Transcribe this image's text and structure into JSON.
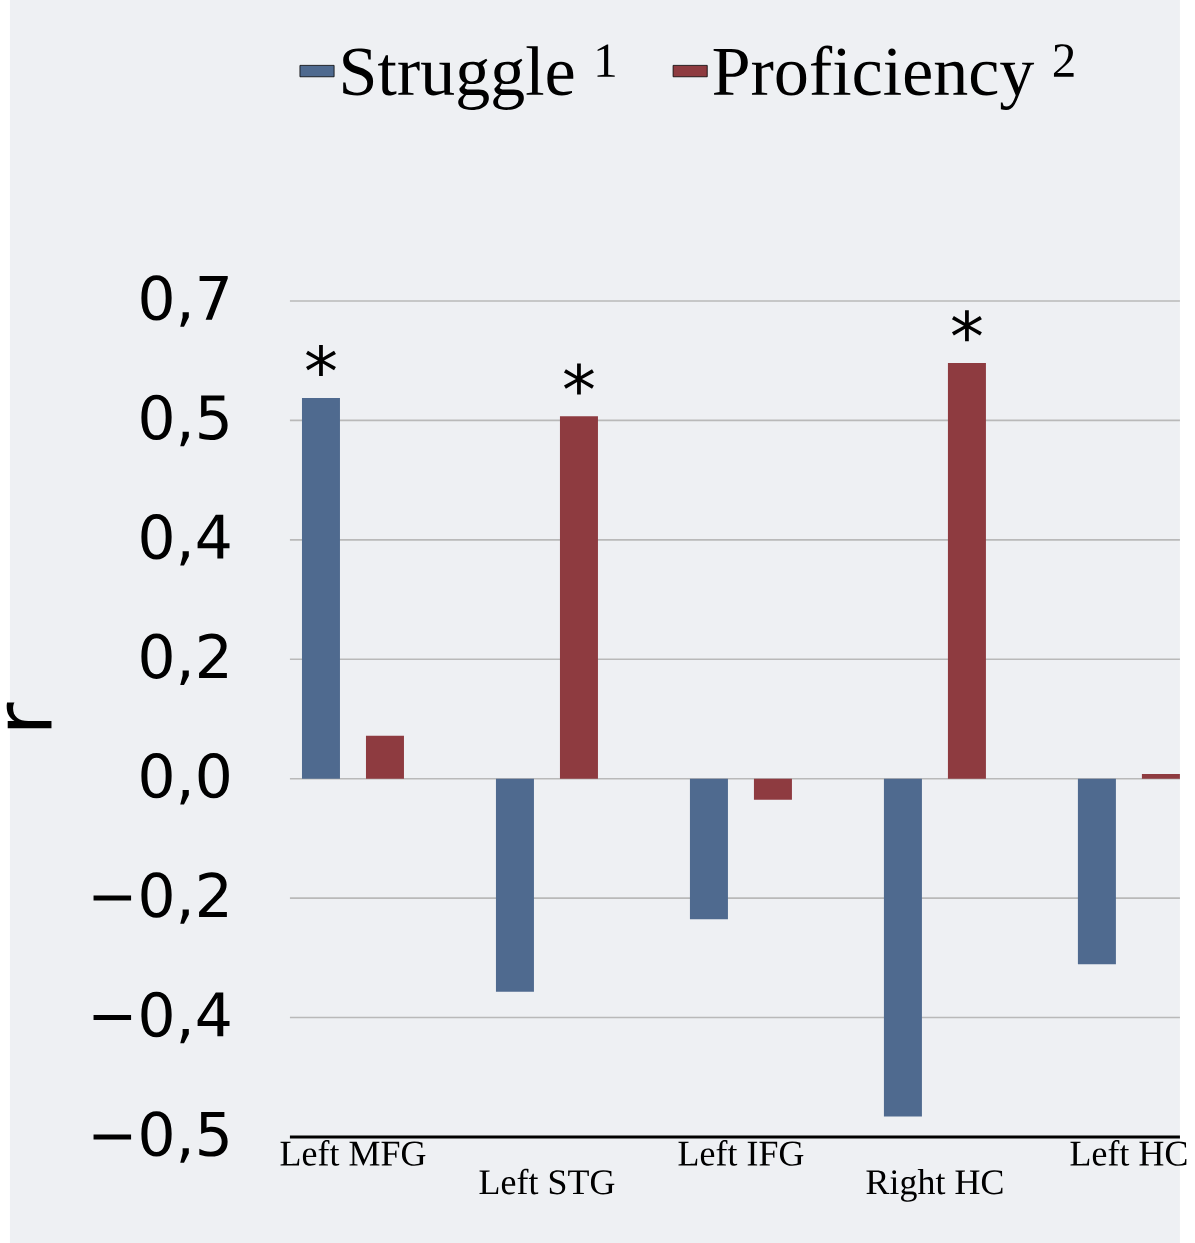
{
  "chart_data": {
    "type": "bar",
    "categories": [
      "Left MFG",
      "Left STG",
      "Left IFG",
      "Right HC",
      "Left HC"
    ],
    "series": [
      {
        "name": "Struggle $^{1}$",
        "color": "#4f6a8f",
        "values": [
          0.558,
          -0.312,
          -0.206,
          -0.495,
          -0.272
        ]
      },
      {
        "name": "Proficiency $^{2}$",
        "color": "#8e3b40",
        "values": [
          0.063,
          0.531,
          -0.031,
          0.609,
          0.007
        ]
      }
    ],
    "ylabel": "r",
    "ylim": [
      -0.525,
      0.7
    ],
    "yticks": [
      {
        "value": -0.525,
        "label": "−0,5"
      },
      {
        "value": -0.35,
        "label": "−0,4"
      },
      {
        "value": -0.175,
        "label": "−0,2"
      },
      {
        "value": 0,
        "label": "0,0"
      },
      {
        "value": 0.175,
        "label": "0,2"
      },
      {
        "value": 0.35,
        "label": "0,4"
      },
      {
        "value": 0.525,
        "label": "0,5"
      },
      {
        "value": 0.7,
        "label": "0,7"
      }
    ],
    "annotations": [
      "*",
      "*",
      "*"
    ],
    "grid": "y",
    "legend": "top"
  }
}
